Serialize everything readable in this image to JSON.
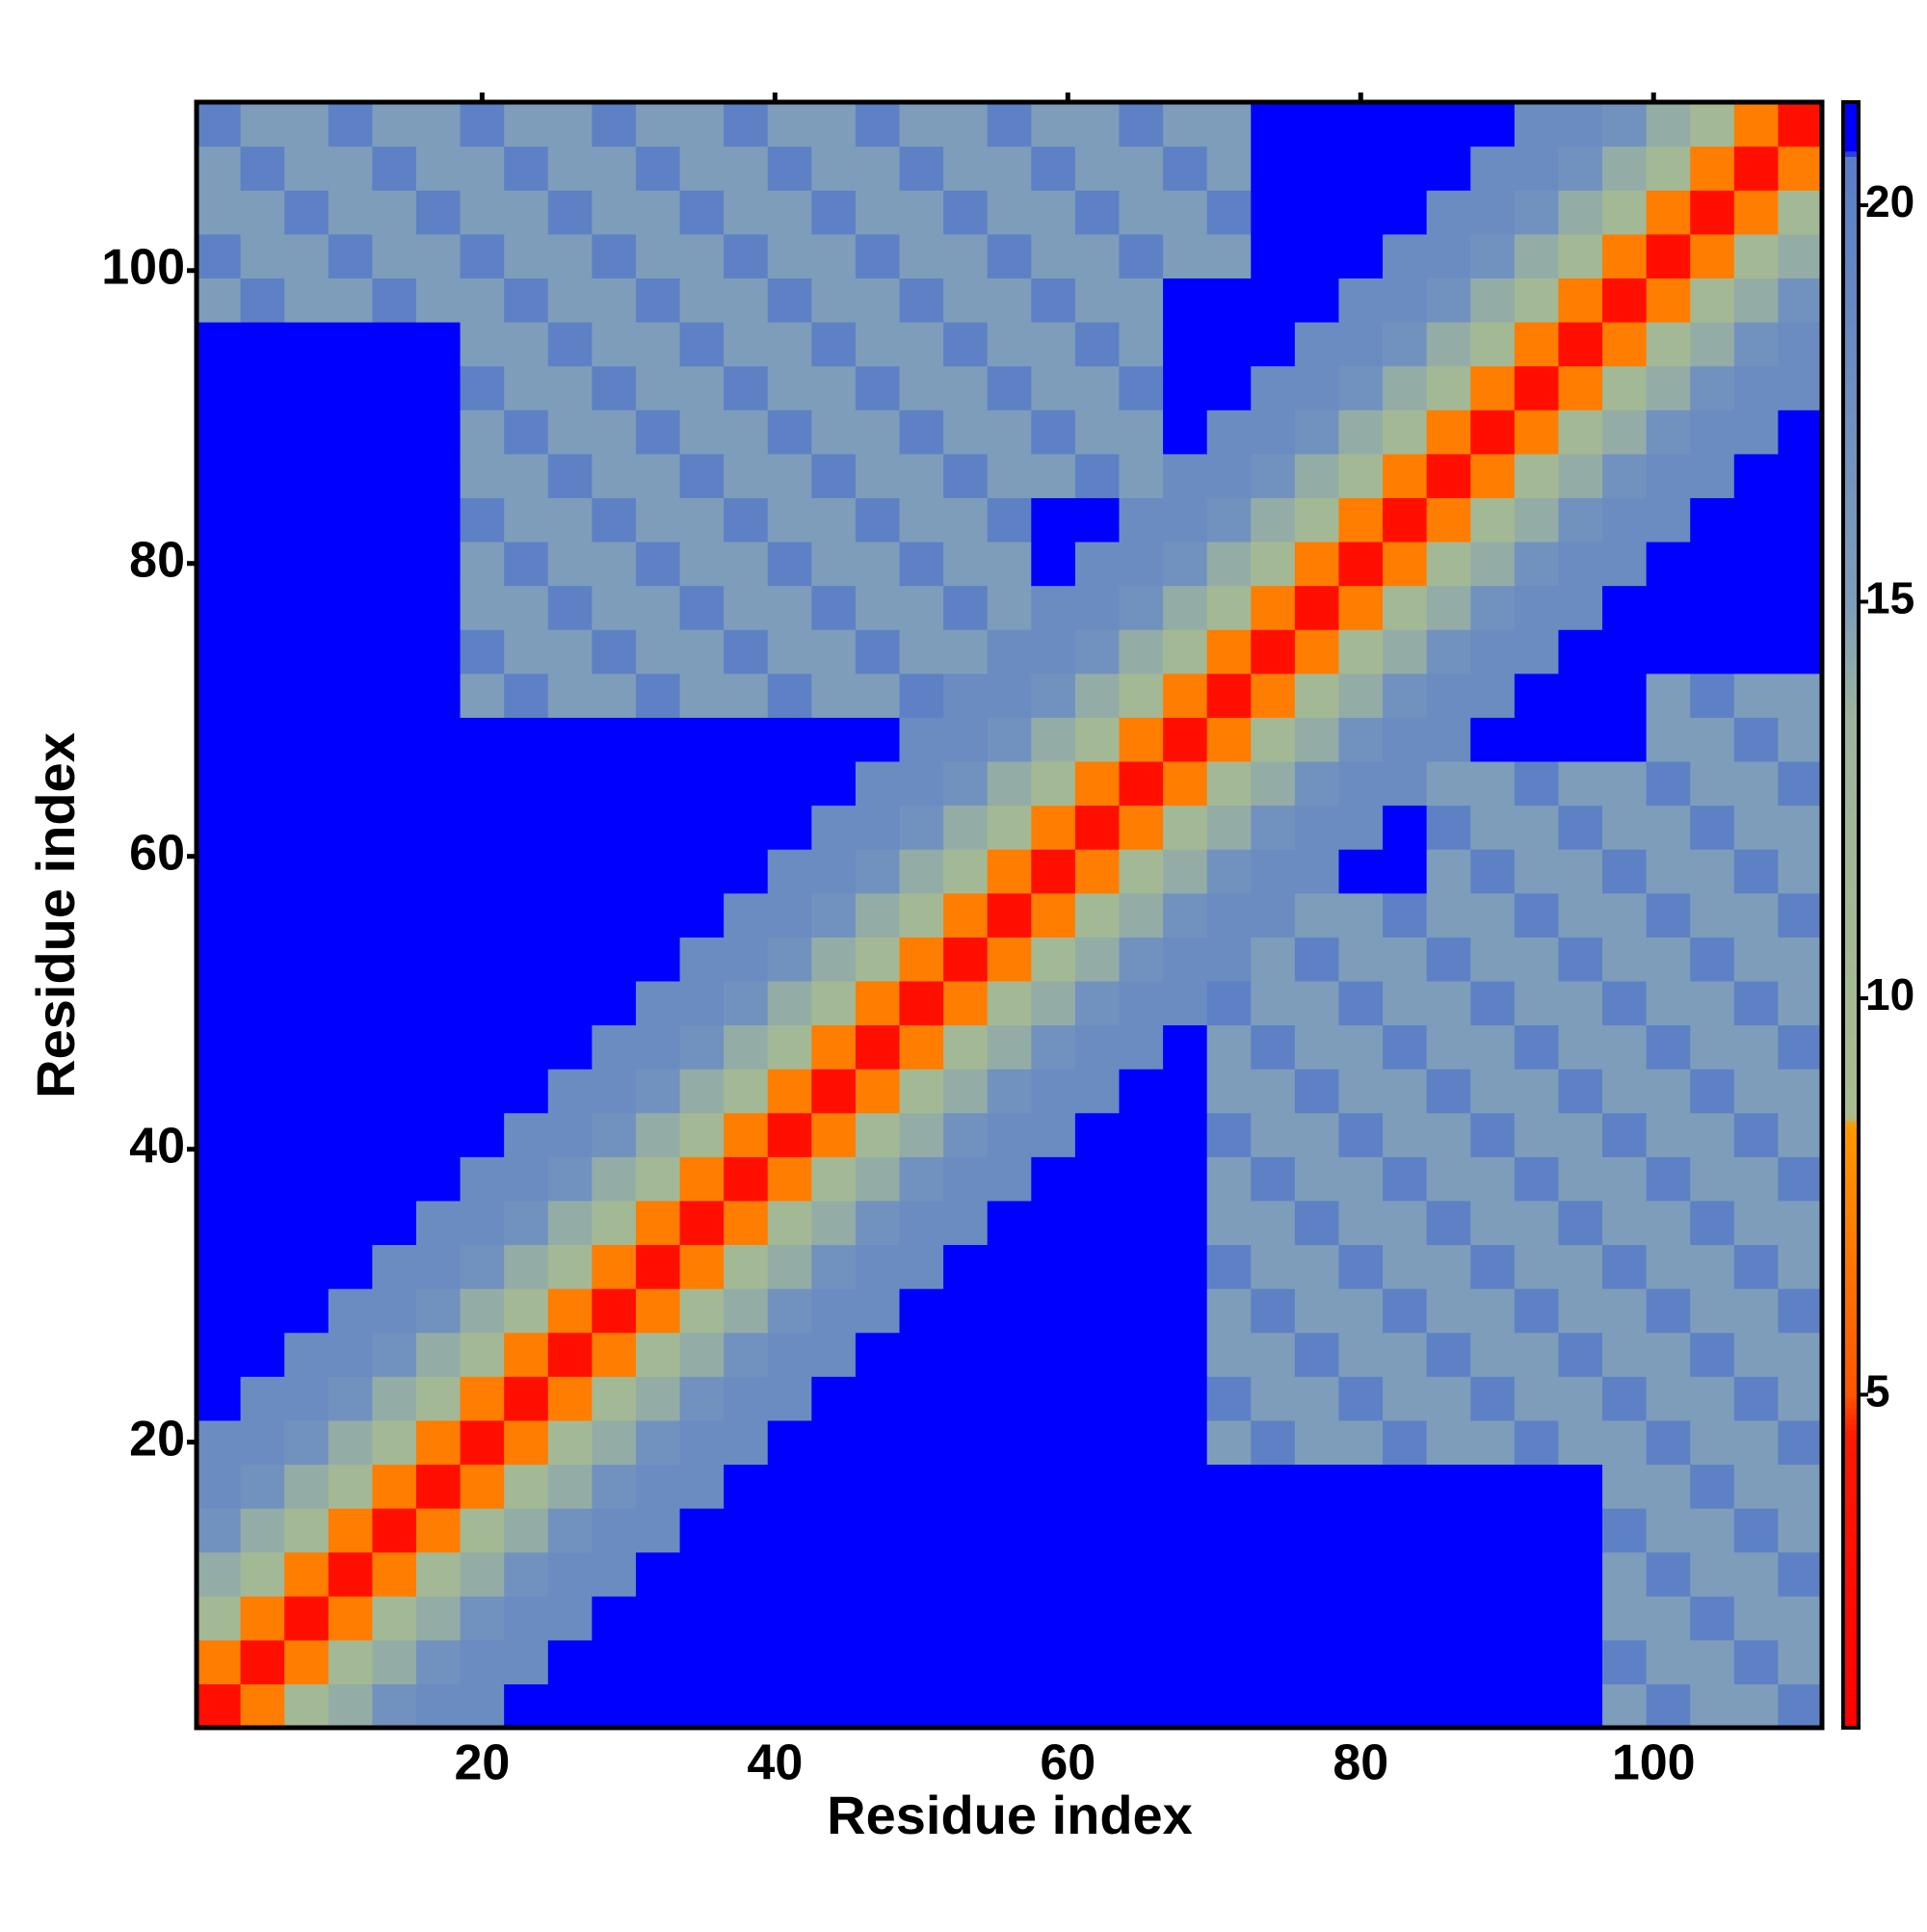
{
  "chart_data": {
    "type": "heatmap",
    "x_label": "Residue index",
    "y_label": "Residue index",
    "xlim": [
      0.5,
      111.5
    ],
    "ylim": [
      0.5,
      111.5
    ],
    "xticks": [
      20,
      40,
      60,
      80,
      100
    ],
    "yticks": [
      20,
      40,
      60,
      80,
      100
    ],
    "colorbar": {
      "zlim": [
        0.8,
        21.3
      ],
      "ticks": [
        5,
        10,
        15,
        20
      ],
      "colors": [
        {
          "value": 0.8,
          "color": "#ff0000"
        },
        {
          "value": 4.5,
          "color": "#ff1a00"
        },
        {
          "value": 5,
          "color": "#ff5500"
        },
        {
          "value": 8.4,
          "color": "#ff9900"
        },
        {
          "value": 8.5,
          "color": "#a8bc8e"
        },
        {
          "value": 13.5,
          "color": "#9db59c"
        },
        {
          "value": 15,
          "color": "#7e9dbb"
        },
        {
          "value": 20.6,
          "color": "#5a7ec6"
        },
        {
          "value": 20.7,
          "color": "#0000ff"
        },
        {
          "value": 21.3,
          "color": "#0000ff"
        }
      ]
    },
    "z": [
      [
        3,
        7,
        11,
        14,
        17,
        18,
        18,
        21,
        21,
        21,
        21,
        21,
        21,
        21,
        21,
        21,
        21,
        21,
        21,
        21,
        21,
        21,
        21,
        21,
        21,
        21,
        21,
        21,
        21,
        21,
        21,
        21,
        15,
        20,
        15,
        15,
        20
      ],
      [
        7,
        3,
        7,
        11,
        14,
        17,
        18,
        18,
        21,
        21,
        21,
        21,
        21,
        21,
        21,
        21,
        21,
        21,
        21,
        21,
        21,
        21,
        21,
        21,
        21,
        21,
        21,
        21,
        21,
        21,
        21,
        21,
        20,
        15,
        15,
        20,
        15
      ],
      [
        11,
        7,
        3,
        7,
        11,
        14,
        17,
        18,
        18,
        21,
        21,
        21,
        21,
        21,
        21,
        21,
        21,
        21,
        21,
        21,
        21,
        21,
        21,
        21,
        21,
        21,
        21,
        21,
        21,
        21,
        21,
        21,
        15,
        15,
        20,
        15,
        15
      ],
      [
        14,
        11,
        7,
        3,
        7,
        11,
        14,
        17,
        18,
        18,
        21,
        21,
        21,
        21,
        21,
        21,
        21,
        21,
        21,
        21,
        21,
        21,
        21,
        21,
        21,
        21,
        21,
        21,
        21,
        21,
        21,
        21,
        15,
        20,
        15,
        15,
        20
      ],
      [
        17,
        14,
        11,
        7,
        3,
        7,
        11,
        14,
        17,
        18,
        18,
        21,
        21,
        21,
        21,
        21,
        21,
        21,
        21,
        21,
        21,
        21,
        21,
        21,
        21,
        21,
        21,
        21,
        21,
        21,
        21,
        21,
        20,
        15,
        15,
        20,
        15
      ],
      [
        18,
        17,
        14,
        11,
        7,
        3,
        7,
        11,
        14,
        17,
        18,
        18,
        21,
        21,
        21,
        21,
        21,
        21,
        21,
        21,
        21,
        21,
        21,
        21,
        21,
        21,
        21,
        21,
        21,
        21,
        21,
        21,
        15,
        15,
        20,
        15,
        15
      ],
      [
        18,
        18,
        17,
        14,
        11,
        7,
        3,
        7,
        11,
        14,
        17,
        18,
        18,
        21,
        21,
        21,
        21,
        21,
        21,
        21,
        21,
        21,
        21,
        15,
        20,
        15,
        15,
        20,
        15,
        15,
        20,
        15,
        15,
        20,
        15,
        15,
        20
      ],
      [
        21,
        18,
        18,
        17,
        14,
        11,
        7,
        3,
        7,
        11,
        14,
        17,
        18,
        18,
        21,
        21,
        21,
        21,
        21,
        21,
        21,
        21,
        21,
        20,
        15,
        15,
        20,
        15,
        15,
        20,
        15,
        15,
        20,
        15,
        15,
        20,
        15
      ],
      [
        21,
        21,
        18,
        18,
        17,
        14,
        11,
        7,
        3,
        7,
        11,
        14,
        17,
        18,
        18,
        21,
        21,
        21,
        21,
        21,
        21,
        21,
        21,
        15,
        15,
        20,
        15,
        15,
        20,
        15,
        15,
        20,
        15,
        15,
        20,
        15,
        15
      ],
      [
        21,
        21,
        21,
        18,
        18,
        17,
        14,
        11,
        7,
        3,
        7,
        11,
        14,
        17,
        18,
        18,
        21,
        21,
        21,
        21,
        21,
        21,
        21,
        15,
        20,
        15,
        15,
        20,
        15,
        15,
        20,
        15,
        15,
        20,
        15,
        15,
        20
      ],
      [
        21,
        21,
        21,
        21,
        18,
        18,
        17,
        14,
        11,
        7,
        3,
        7,
        11,
        14,
        17,
        18,
        18,
        21,
        21,
        21,
        21,
        21,
        21,
        20,
        15,
        15,
        20,
        15,
        15,
        20,
        15,
        15,
        20,
        15,
        15,
        20,
        15
      ],
      [
        21,
        21,
        21,
        21,
        21,
        18,
        18,
        17,
        14,
        11,
        7,
        3,
        7,
        11,
        14,
        17,
        18,
        18,
        21,
        21,
        21,
        21,
        21,
        15,
        15,
        20,
        15,
        15,
        20,
        15,
        15,
        20,
        15,
        15,
        20,
        15,
        15
      ],
      [
        21,
        21,
        21,
        21,
        21,
        21,
        18,
        18,
        17,
        14,
        11,
        7,
        3,
        7,
        11,
        14,
        17,
        18,
        18,
        21,
        21,
        21,
        21,
        15,
        20,
        15,
        15,
        20,
        15,
        15,
        20,
        15,
        15,
        20,
        15,
        15,
        20
      ],
      [
        21,
        21,
        21,
        21,
        21,
        21,
        21,
        18,
        18,
        17,
        14,
        11,
        7,
        3,
        7,
        11,
        14,
        17,
        18,
        18,
        21,
        21,
        21,
        20,
        15,
        15,
        20,
        15,
        15,
        20,
        15,
        15,
        20,
        15,
        15,
        20,
        15
      ],
      [
        21,
        21,
        21,
        21,
        21,
        21,
        21,
        21,
        18,
        18,
        17,
        14,
        11,
        7,
        3,
        7,
        11,
        14,
        17,
        18,
        18,
        21,
        21,
        15,
        15,
        20,
        15,
        15,
        20,
        15,
        15,
        20,
        15,
        15,
        20,
        15,
        15
      ],
      [
        21,
        21,
        21,
        21,
        21,
        21,
        21,
        21,
        21,
        18,
        18,
        17,
        14,
        11,
        7,
        3,
        7,
        11,
        14,
        17,
        18,
        18,
        21,
        15,
        20,
        15,
        15,
        20,
        15,
        15,
        20,
        15,
        15,
        20,
        15,
        15,
        20
      ],
      [
        21,
        21,
        21,
        21,
        21,
        21,
        21,
        21,
        21,
        21,
        18,
        18,
        17,
        14,
        11,
        7,
        3,
        7,
        11,
        14,
        17,
        18,
        18,
        20,
        15,
        15,
        20,
        15,
        15,
        20,
        15,
        15,
        20,
        15,
        15,
        20,
        15
      ],
      [
        21,
        21,
        21,
        21,
        21,
        21,
        21,
        21,
        21,
        21,
        21,
        18,
        18,
        17,
        14,
        11,
        7,
        3,
        7,
        11,
        14,
        17,
        18,
        18,
        15,
        20,
        15,
        15,
        20,
        15,
        15,
        20,
        15,
        15,
        20,
        15,
        15
      ],
      [
        21,
        21,
        21,
        21,
        21,
        21,
        21,
        21,
        21,
        21,
        21,
        21,
        18,
        18,
        17,
        14,
        11,
        7,
        3,
        7,
        11,
        14,
        17,
        18,
        18,
        15,
        15,
        20,
        15,
        15,
        20,
        15,
        15,
        20,
        15,
        15,
        20
      ],
      [
        21,
        21,
        21,
        21,
        21,
        21,
        21,
        21,
        21,
        21,
        21,
        21,
        21,
        18,
        18,
        17,
        14,
        11,
        7,
        3,
        7,
        11,
        14,
        17,
        18,
        18,
        21,
        21,
        15,
        20,
        15,
        15,
        20,
        15,
        15,
        20,
        15
      ],
      [
        21,
        21,
        21,
        21,
        21,
        21,
        21,
        21,
        21,
        21,
        21,
        21,
        21,
        21,
        18,
        18,
        17,
        14,
        11,
        7,
        3,
        7,
        11,
        14,
        17,
        18,
        18,
        21,
        20,
        15,
        15,
        20,
        15,
        15,
        20,
        15,
        15
      ],
      [
        21,
        21,
        21,
        21,
        21,
        21,
        21,
        21,
        21,
        21,
        21,
        21,
        21,
        21,
        21,
        18,
        18,
        17,
        14,
        11,
        7,
        3,
        7,
        11,
        14,
        17,
        18,
        18,
        15,
        15,
        20,
        15,
        15,
        20,
        15,
        15,
        20
      ],
      [
        21,
        21,
        21,
        21,
        21,
        21,
        21,
        21,
        21,
        21,
        21,
        21,
        21,
        21,
        21,
        21,
        18,
        18,
        17,
        14,
        11,
        7,
        3,
        7,
        11,
        14,
        17,
        18,
        18,
        21,
        21,
        21,
        21,
        15,
        15,
        20,
        15
      ],
      [
        21,
        21,
        21,
        21,
        21,
        21,
        15,
        20,
        15,
        15,
        20,
        15,
        15,
        20,
        15,
        15,
        20,
        18,
        18,
        17,
        14,
        11,
        7,
        3,
        7,
        11,
        14,
        17,
        18,
        18,
        21,
        21,
        21,
        15,
        20,
        15,
        15
      ],
      [
        21,
        21,
        21,
        21,
        21,
        21,
        20,
        15,
        15,
        20,
        15,
        15,
        20,
        15,
        15,
        20,
        15,
        15,
        18,
        18,
        17,
        14,
        11,
        7,
        3,
        7,
        11,
        14,
        17,
        18,
        18,
        21,
        21,
        21,
        21,
        21,
        21
      ],
      [
        21,
        21,
        21,
        21,
        21,
        21,
        15,
        15,
        20,
        15,
        15,
        20,
        15,
        15,
        20,
        15,
        15,
        20,
        15,
        18,
        18,
        17,
        14,
        11,
        7,
        3,
        7,
        11,
        14,
        17,
        18,
        18,
        21,
        21,
        21,
        21,
        21
      ],
      [
        21,
        21,
        21,
        21,
        21,
        21,
        15,
        20,
        15,
        15,
        20,
        15,
        15,
        20,
        15,
        15,
        20,
        15,
        15,
        21,
        18,
        18,
        17,
        14,
        11,
        7,
        3,
        7,
        11,
        14,
        17,
        18,
        18,
        21,
        21,
        21,
        21
      ],
      [
        21,
        21,
        21,
        21,
        21,
        21,
        20,
        15,
        15,
        20,
        15,
        15,
        20,
        15,
        15,
        20,
        15,
        15,
        20,
        21,
        21,
        18,
        18,
        17,
        14,
        11,
        7,
        3,
        7,
        11,
        14,
        17,
        18,
        18,
        21,
        21,
        21
      ],
      [
        21,
        21,
        21,
        21,
        21,
        21,
        15,
        15,
        20,
        15,
        15,
        20,
        15,
        15,
        20,
        15,
        15,
        20,
        15,
        15,
        20,
        15,
        18,
        18,
        17,
        14,
        11,
        7,
        3,
        7,
        11,
        14,
        17,
        18,
        18,
        21,
        21
      ],
      [
        21,
        21,
        21,
        21,
        21,
        21,
        15,
        20,
        15,
        15,
        20,
        15,
        15,
        20,
        15,
        15,
        20,
        15,
        15,
        20,
        15,
        15,
        21,
        18,
        18,
        17,
        14,
        11,
        7,
        3,
        7,
        11,
        14,
        17,
        18,
        18,
        21
      ],
      [
        21,
        21,
        21,
        21,
        21,
        21,
        20,
        15,
        15,
        20,
        15,
        15,
        20,
        15,
        15,
        20,
        15,
        15,
        20,
        15,
        15,
        20,
        21,
        21,
        18,
        18,
        17,
        14,
        11,
        7,
        3,
        7,
        11,
        14,
        17,
        18,
        18
      ],
      [
        21,
        21,
        21,
        21,
        21,
        21,
        15,
        15,
        20,
        15,
        15,
        20,
        15,
        15,
        20,
        15,
        15,
        20,
        15,
        15,
        20,
        15,
        21,
        21,
        21,
        18,
        18,
        17,
        14,
        11,
        7,
        3,
        7,
        11,
        14,
        17,
        18
      ],
      [
        15,
        20,
        15,
        15,
        20,
        15,
        15,
        20,
        15,
        15,
        20,
        15,
        15,
        20,
        15,
        15,
        20,
        15,
        15,
        20,
        15,
        15,
        21,
        21,
        21,
        21,
        18,
        18,
        17,
        14,
        11,
        7,
        3,
        7,
        11,
        14,
        17
      ],
      [
        20,
        15,
        15,
        20,
        15,
        15,
        20,
        15,
        15,
        20,
        15,
        15,
        20,
        15,
        15,
        20,
        15,
        15,
        20,
        15,
        15,
        20,
        15,
        15,
        21,
        21,
        21,
        18,
        18,
        17,
        14,
        11,
        7,
        3,
        7,
        11,
        14
      ],
      [
        15,
        15,
        20,
        15,
        15,
        20,
        15,
        15,
        20,
        15,
        15,
        20,
        15,
        15,
        20,
        15,
        15,
        20,
        15,
        15,
        20,
        15,
        15,
        20,
        21,
        21,
        21,
        21,
        18,
        18,
        17,
        14,
        11,
        7,
        3,
        7,
        11
      ],
      [
        15,
        20,
        15,
        15,
        20,
        15,
        15,
        20,
        15,
        15,
        20,
        15,
        15,
        20,
        15,
        15,
        20,
        15,
        15,
        20,
        15,
        15,
        20,
        15,
        21,
        21,
        21,
        21,
        21,
        18,
        18,
        17,
        14,
        11,
        7,
        3,
        7
      ],
      [
        20,
        15,
        15,
        20,
        15,
        15,
        20,
        15,
        15,
        20,
        15,
        15,
        20,
        15,
        15,
        20,
        15,
        15,
        20,
        15,
        15,
        20,
        15,
        15,
        21,
        21,
        21,
        21,
        21,
        21,
        18,
        18,
        17,
        14,
        11,
        7,
        3
      ]
    ]
  }
}
